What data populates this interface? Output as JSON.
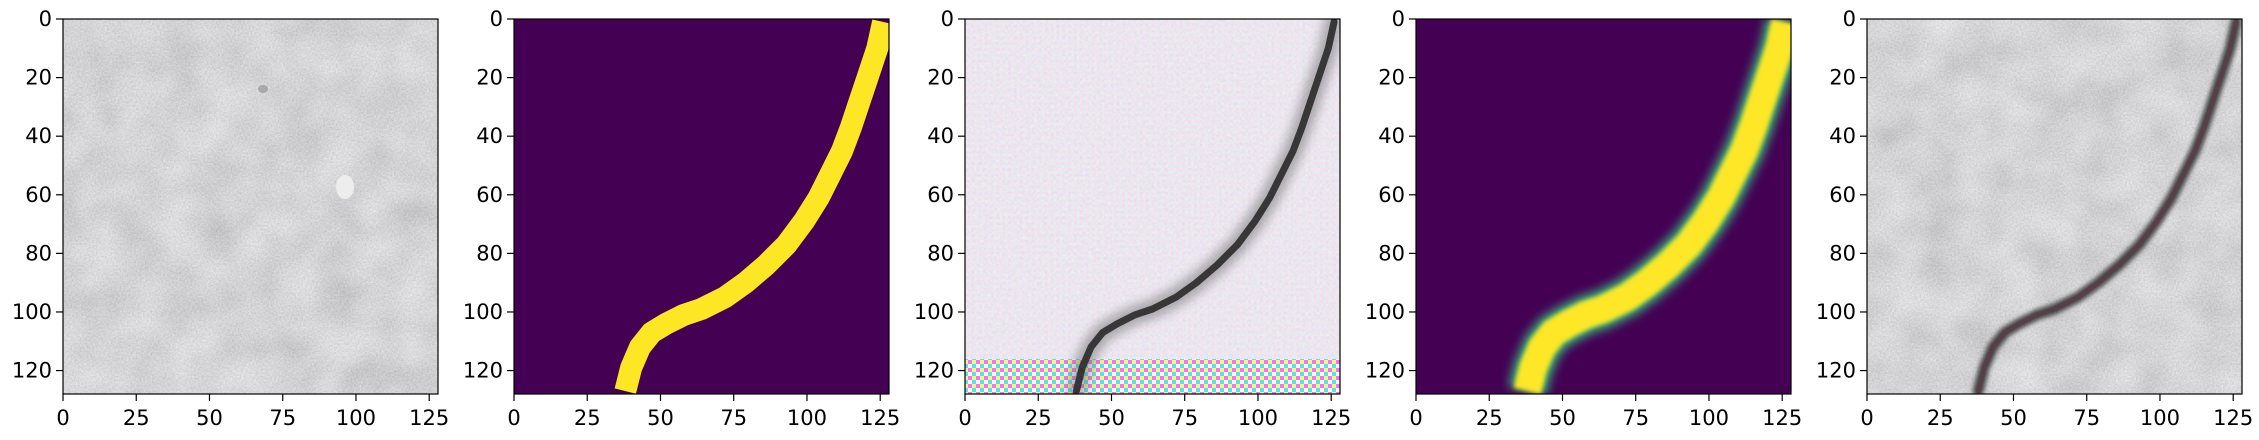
{
  "figure": {
    "panels": [
      {
        "id": "input-texture",
        "kind": "texture"
      },
      {
        "id": "ground-truth-mask",
        "kind": "mask"
      },
      {
        "id": "generated-texture",
        "kind": "generated"
      },
      {
        "id": "predicted-mask",
        "kind": "soft-mask"
      },
      {
        "id": "blended-result",
        "kind": "blend"
      }
    ],
    "x_ticks": [
      0,
      25,
      50,
      75,
      100,
      125
    ],
    "y_ticks": [
      0,
      20,
      40,
      60,
      80,
      100,
      120
    ],
    "x_tick_labels": [
      "0",
      "25",
      "50",
      "75",
      "100",
      "125"
    ],
    "y_tick_labels": [
      "0",
      "20",
      "40",
      "60",
      "80",
      "100",
      "120"
    ],
    "image_range": [
      0,
      128
    ],
    "colors": {
      "mask_background": "#440154",
      "mask_foreground": "#fde725",
      "mask_edge": "#35b779",
      "crack_dark": "#2a2a2a",
      "concrete": "#bfbfbf"
    }
  }
}
